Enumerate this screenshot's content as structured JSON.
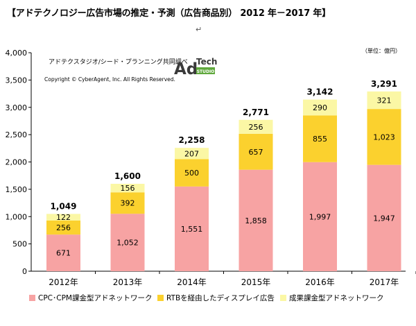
{
  "heading": "【アドテクノロジー広告市場の推定・予測（広告商品別） 2012 年－2017 年】",
  "return_mark": "↵",
  "source_note": "アドテクスタジオ/シード・プランニング共同調べ",
  "copyright": "Copyright © CyberAgent, Inc. All Rights Reserved.",
  "logo": {
    "main": "Ad",
    "top": "Tech",
    "bottom": "STUDIO",
    "badge_color": "#5fa83c"
  },
  "unit_note": "（単位：億円）",
  "colors": {
    "cpc": "#f7a3a3",
    "rtb": "#fbd12e",
    "outcome": "#fbf7a5"
  },
  "chart_data": {
    "type": "bar",
    "stacked": true,
    "categories": [
      "2012年",
      "2013年",
      "2014年",
      "2015年",
      "2016年",
      "2017年"
    ],
    "series": [
      {
        "name": "CPC･CPM課金型アドネットワーク",
        "values": [
          671,
          1052,
          1551,
          1858,
          1997,
          1947
        ]
      },
      {
        "name": "RTBを経由したディスプレイ広告",
        "values": [
          256,
          392,
          500,
          657,
          855,
          1023
        ]
      },
      {
        "name": "成果課金型アドネットワーク",
        "values": [
          122,
          156,
          207,
          256,
          290,
          321
        ]
      }
    ],
    "value_labels": [
      [
        "671",
        "1,052",
        "1,551",
        "1,858",
        "1,997",
        "1,947"
      ],
      [
        "256",
        "392",
        "500",
        "657",
        "855",
        "1,023"
      ],
      [
        "122",
        "156",
        "207",
        "256",
        "290",
        "321"
      ]
    ],
    "totals": [
      1049,
      1600,
      2258,
      2771,
      3142,
      3291
    ],
    "total_labels": [
      "1,049",
      "1,600",
      "2,258",
      "2,771",
      "3,142",
      "3,291"
    ],
    "yticks": [
      "0",
      "500",
      "1,000",
      "1,500",
      "2,000",
      "2,500",
      "3,000",
      "3,500",
      "4,000"
    ],
    "ylim": [
      0,
      4000
    ],
    "grid": false,
    "legend_position": "bottom"
  }
}
